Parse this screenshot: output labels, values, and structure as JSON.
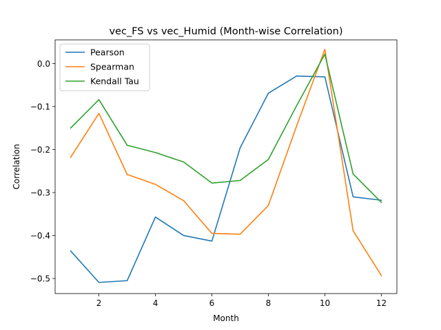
{
  "chart_data": {
    "type": "line",
    "title": "vec_FS vs vec_Humid (Month-wise Correlation)",
    "xlabel": "Month",
    "ylabel": "Correlation",
    "x": [
      1,
      2,
      3,
      4,
      5,
      6,
      7,
      8,
      9,
      10,
      11,
      12
    ],
    "xlim": [
      0.45,
      12.55
    ],
    "ylim": [
      -0.535,
      0.055
    ],
    "xticks": [
      2,
      4,
      6,
      8,
      10,
      12
    ],
    "yticks": [
      0.0,
      -0.1,
      -0.2,
      -0.3,
      -0.4,
      -0.5
    ],
    "ytick_labels": [
      "0.0",
      "−0.1",
      "−0.2",
      "−0.3",
      "−0.4",
      "−0.5"
    ],
    "grid": false,
    "legend_position": "top-left",
    "series": [
      {
        "name": "Pearson",
        "color": "#1f77b4",
        "values": [
          -0.436,
          -0.509,
          -0.505,
          -0.357,
          -0.4,
          -0.413,
          -0.196,
          -0.069,
          -0.029,
          -0.031,
          -0.31,
          -0.318
        ]
      },
      {
        "name": "Spearman",
        "color": "#ff7f0e",
        "values": [
          -0.218,
          -0.116,
          -0.258,
          -0.281,
          -0.319,
          -0.395,
          -0.397,
          -0.33,
          -0.145,
          0.033,
          -0.389,
          -0.493
        ]
      },
      {
        "name": "Kendall Tau",
        "color": "#2ca02c",
        "values": [
          -0.15,
          -0.084,
          -0.19,
          -0.207,
          -0.229,
          -0.278,
          -0.272,
          -0.223,
          -0.098,
          0.022,
          -0.257,
          -0.323
        ]
      }
    ]
  }
}
